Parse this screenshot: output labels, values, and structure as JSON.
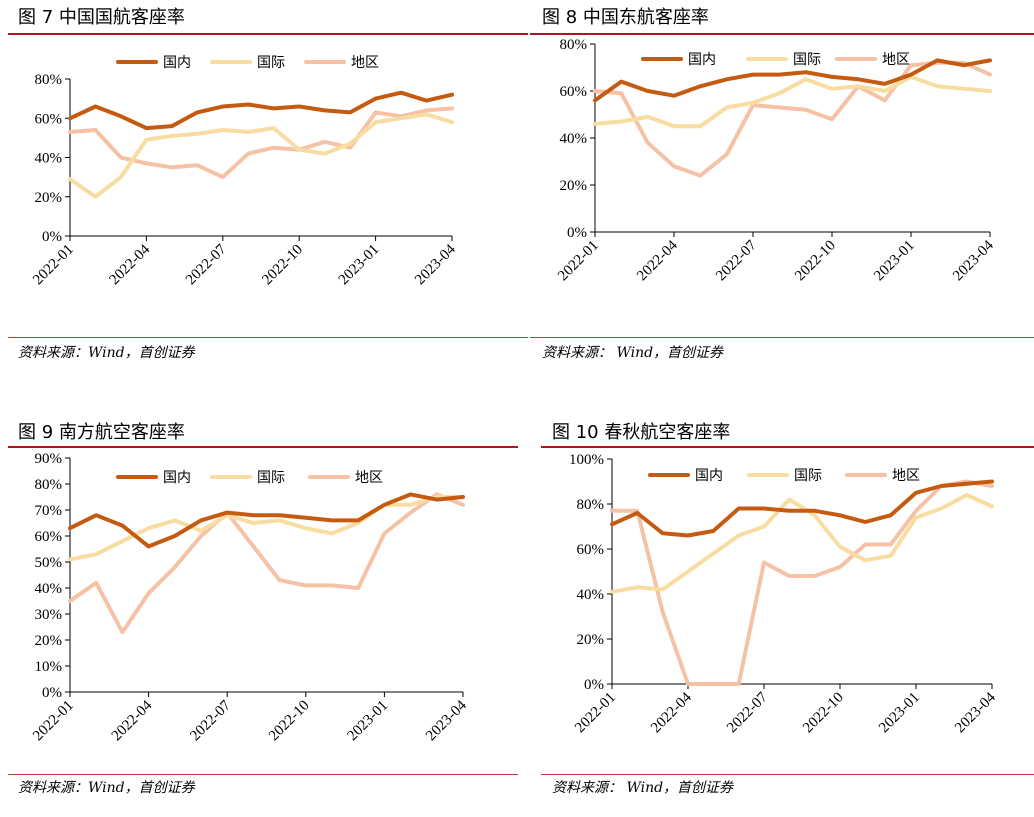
{
  "legend": {
    "domestic": "国内",
    "international": "国际",
    "regional": "地区"
  },
  "colors": {
    "domestic": "#c55a11",
    "international": "#f8dca0",
    "regional": "#f5c2a6",
    "rule": "#b4141e",
    "axis": "#000000"
  },
  "chart_data": [
    {
      "type": "line",
      "title": "图 7  中国国航客座率",
      "source": "资料来源：Wind，首创证券",
      "ylim": [
        0,
        80
      ],
      "yticks": [
        0,
        20,
        40,
        60,
        80
      ],
      "yfmt": "%",
      "xticks": [
        "2022-01",
        "2022-04",
        "2022-07",
        "2022-10",
        "2023-01",
        "2023-04"
      ],
      "months": 16,
      "series": [
        {
          "name": "国内",
          "key": "domestic",
          "values": [
            60,
            66,
            61,
            55,
            56,
            63,
            66,
            67,
            65,
            66,
            64,
            63,
            70,
            73,
            69,
            72
          ]
        },
        {
          "name": "国际",
          "key": "international",
          "values": [
            29,
            20,
            30,
            49,
            51,
            52,
            54,
            53,
            55,
            44,
            42,
            47,
            58,
            60,
            62,
            58
          ]
        },
        {
          "name": "地区",
          "key": "regional",
          "values": [
            53,
            54,
            40,
            37,
            35,
            36,
            30,
            42,
            45,
            44,
            48,
            45,
            63,
            61,
            64,
            65
          ]
        }
      ]
    },
    {
      "type": "line",
      "title": "图 8  中国东航客座率",
      "source": "资料来源：  Wind，首创证券",
      "ylim": [
        0,
        80
      ],
      "yticks": [
        0,
        20,
        40,
        60,
        80
      ],
      "yfmt": "%",
      "xticks": [
        "2022-01",
        "2022-04",
        "2022-07",
        "2022-10",
        "2023-01",
        "2023-04"
      ],
      "months": 16,
      "series": [
        {
          "name": "国内",
          "key": "domestic",
          "values": [
            56,
            64,
            60,
            58,
            62,
            65,
            67,
            67,
            68,
            66,
            65,
            63,
            67,
            73,
            71,
            73
          ]
        },
        {
          "name": "国际",
          "key": "international",
          "values": [
            46,
            47,
            49,
            45,
            45,
            53,
            55,
            59,
            65,
            61,
            62,
            60,
            66,
            62,
            61,
            60
          ]
        },
        {
          "name": "地区",
          "key": "regional",
          "values": [
            60,
            59,
            38,
            28,
            24,
            33,
            54,
            53,
            52,
            48,
            62,
            56,
            71,
            72,
            72,
            67
          ]
        }
      ]
    },
    {
      "type": "line",
      "title": "图 9  南方航空客座率",
      "source": "资料来源：Wind，首创证券",
      "ylim": [
        0,
        90
      ],
      "yticks": [
        0,
        10,
        20,
        30,
        40,
        50,
        60,
        70,
        80,
        90
      ],
      "yfmt": "%",
      "xticks": [
        "2022-01",
        "2022-04",
        "2022-07",
        "2022-10",
        "2023-01",
        "2023-04"
      ],
      "months": 16,
      "series": [
        {
          "name": "国内",
          "key": "domestic",
          "values": [
            63,
            68,
            64,
            56,
            60,
            66,
            69,
            68,
            68,
            67,
            66,
            66,
            72,
            76,
            74,
            75
          ]
        },
        {
          "name": "国际",
          "key": "international",
          "values": [
            51,
            53,
            58,
            63,
            66,
            62,
            68,
            65,
            66,
            63,
            61,
            65,
            72,
            72,
            75,
            75
          ]
        },
        {
          "name": "地区",
          "key": "regional",
          "values": [
            35,
            42,
            23,
            38,
            48,
            60,
            69,
            56,
            43,
            41,
            41,
            40,
            61,
            69,
            76,
            72
          ]
        }
      ]
    },
    {
      "type": "line",
      "title": "图 10  春秋航空客座率",
      "source": "资料来源：  Wind，首创证券",
      "ylim": [
        0,
        100
      ],
      "yticks": [
        0,
        20,
        40,
        60,
        80,
        100
      ],
      "yfmt": "%",
      "xticks": [
        "2022-01",
        "2022-04",
        "2022-07",
        "2022-10",
        "2023-01",
        "2023-04"
      ],
      "months": 16,
      "series": [
        {
          "name": "国内",
          "key": "domestic",
          "values": [
            71,
            76,
            67,
            66,
            68,
            78,
            78,
            77,
            77,
            75,
            72,
            75,
            85,
            88,
            89,
            90
          ]
        },
        {
          "name": "国际",
          "key": "international",
          "values": [
            41,
            43,
            42,
            50,
            58,
            66,
            70,
            82,
            75,
            61,
            55,
            57,
            74,
            78,
            84,
            79
          ]
        },
        {
          "name": "地区",
          "key": "regional",
          "values": [
            77,
            77,
            32,
            0,
            0,
            0,
            54,
            48,
            48,
            52,
            62,
            62,
            77,
            88,
            90,
            88
          ]
        }
      ]
    }
  ]
}
